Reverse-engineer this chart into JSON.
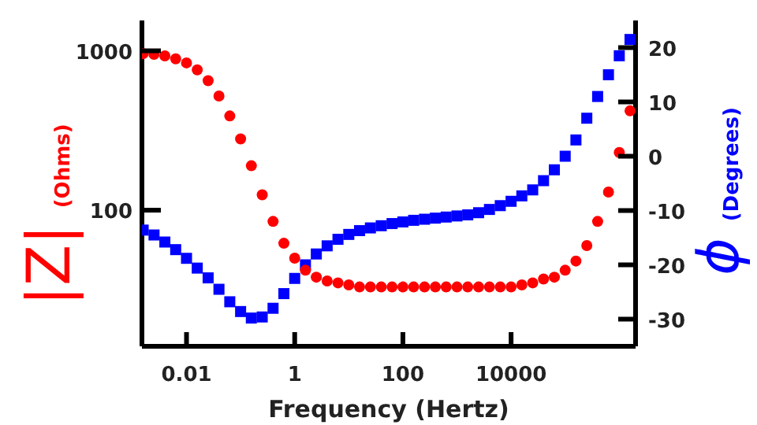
{
  "chart_data": {
    "type": "scatter",
    "xlabel": "Frequency (Hertz)",
    "ylabel": "|Z| (Ohms)",
    "y2label": "ϕ (Degrees)",
    "log": "xy",
    "grid": false,
    "legend": false,
    "x": [
      0.00158,
      0.00251,
      0.00398,
      0.00631,
      0.01,
      0.0158,
      0.0251,
      0.0398,
      0.0631,
      0.1,
      0.158,
      0.251,
      0.398,
      0.631,
      1,
      1.58,
      2.51,
      3.98,
      6.31,
      10,
      15.8,
      25.1,
      39.8,
      63.1,
      100,
      158,
      251,
      398,
      631,
      1000,
      1580,
      2510,
      3980,
      6310,
      10000,
      15800,
      25100,
      39800,
      63100,
      100000,
      158000,
      251000,
      398000,
      631000,
      1000000,
      1580000
    ],
    "xlim": [
      0.0015,
      2000000
    ],
    "xticks": [
      0.01,
      1,
      100,
      10000
    ],
    "ylim": [
      14,
      1550
    ],
    "yticks": [
      100,
      1000
    ],
    "y2lim": [
      -35,
      25
    ],
    "y2ticks": [
      -30,
      -20,
      -10,
      0,
      10,
      20
    ],
    "series": [
      {
        "color": "#ff0000",
        "marker": "circle",
        "values": [
          960,
          950,
          930,
          890,
          840,
          760,
          650,
          520,
          390,
          280,
          190,
          125,
          85,
          62,
          50,
          42,
          38,
          36,
          35,
          34,
          33,
          33,
          33,
          33,
          33,
          33,
          33,
          33,
          33,
          33,
          33,
          33,
          33,
          33,
          33,
          34,
          35,
          37,
          38,
          42,
          48,
          60,
          85,
          130,
          230,
          420
        ]
      },
      {
        "color": "#0000ff",
        "marker": "square",
        "axis": "y2",
        "values": [
          -13.6,
          -14.5,
          -15.8,
          -17.2,
          -18.8,
          -20.6,
          -22.4,
          -24.5,
          -26.8,
          -28.6,
          -29.8,
          -29.6,
          -28,
          -25.3,
          -22.5,
          -20,
          -18,
          -16.5,
          -15.3,
          -14.4,
          -13.7,
          -13.2,
          -12.8,
          -12.4,
          -12.1,
          -11.8,
          -11.6,
          -11.4,
          -11.2,
          -11,
          -10.8,
          -10.4,
          -9.8,
          -9.1,
          -8.3,
          -7.3,
          -6.2,
          -4.5,
          -2.5,
          0,
          3,
          7,
          11,
          15,
          18.5,
          21.5
        ]
      }
    ]
  }
}
